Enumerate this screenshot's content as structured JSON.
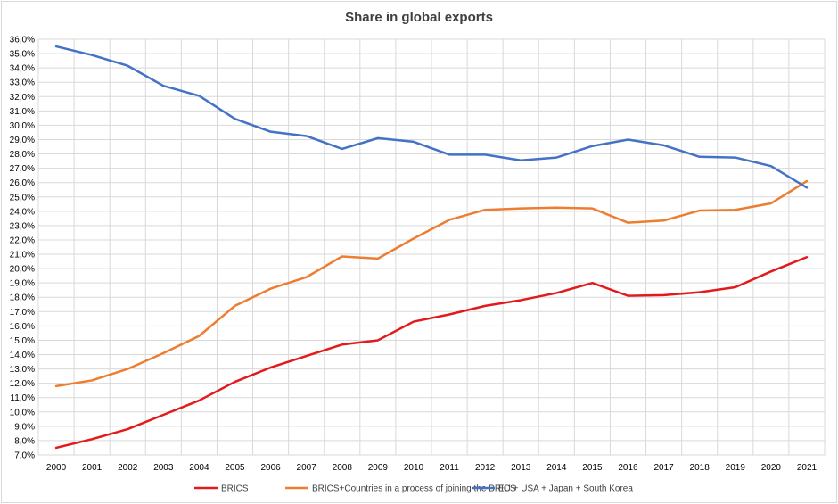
{
  "chart_data": {
    "type": "line",
    "title": "Share in global exports",
    "xlabel": "",
    "ylabel": "",
    "ylim": [
      7.0,
      36.0
    ],
    "ytick_step": 1.0,
    "grid": true,
    "legend_position": "bottom",
    "x": [
      "2000",
      "2001",
      "2002",
      "2003",
      "2004",
      "2005",
      "2006",
      "2007",
      "2008",
      "2009",
      "2010",
      "2011",
      "2012",
      "2013",
      "2014",
      "2015",
      "2016",
      "2017",
      "2018",
      "2019",
      "2020",
      "2021"
    ],
    "y_tick_labels": [
      "7,0%",
      "8,0%",
      "9,0%",
      "10,0%",
      "11,0%",
      "12,0%",
      "13,0%",
      "14,0%",
      "15,0%",
      "16,0%",
      "17,0%",
      "18,0%",
      "19,0%",
      "20,0%",
      "21,0%",
      "22,0%",
      "23,0%",
      "24,0%",
      "25,0%",
      "26,0%",
      "27,0%",
      "28,0%",
      "29,0%",
      "30,0%",
      "31,0%",
      "32,0%",
      "33,0%",
      "34,0%",
      "35,0%",
      "36,0%"
    ],
    "series": [
      {
        "name": "BRICS",
        "color": "#e31a1c",
        "values": [
          7.5,
          8.1,
          8.8,
          9.8,
          10.8,
          12.1,
          13.1,
          13.9,
          14.7,
          15.0,
          16.3,
          16.8,
          17.4,
          17.8,
          18.3,
          19.0,
          18.1,
          18.15,
          18.35,
          18.7,
          19.8,
          20.8
        ]
      },
      {
        "name": "BRICS+Countries in a process of joining the BRICS",
        "color": "#ed7d31",
        "values": [
          11.8,
          12.2,
          13.0,
          14.1,
          15.3,
          17.4,
          18.6,
          19.4,
          20.85,
          20.7,
          22.1,
          23.4,
          24.1,
          24.2,
          24.25,
          24.2,
          23.2,
          23.35,
          24.05,
          24.1,
          24.55,
          26.1
        ]
      },
      {
        "name": "EU + USA + Japan + South Korea",
        "color": "#4472c4",
        "values": [
          35.5,
          34.9,
          34.15,
          32.75,
          32.05,
          30.45,
          29.55,
          29.25,
          28.35,
          29.1,
          28.85,
          27.95,
          27.95,
          27.55,
          27.75,
          28.55,
          29.0,
          28.6,
          27.8,
          27.75,
          27.15,
          25.65
        ]
      }
    ]
  }
}
